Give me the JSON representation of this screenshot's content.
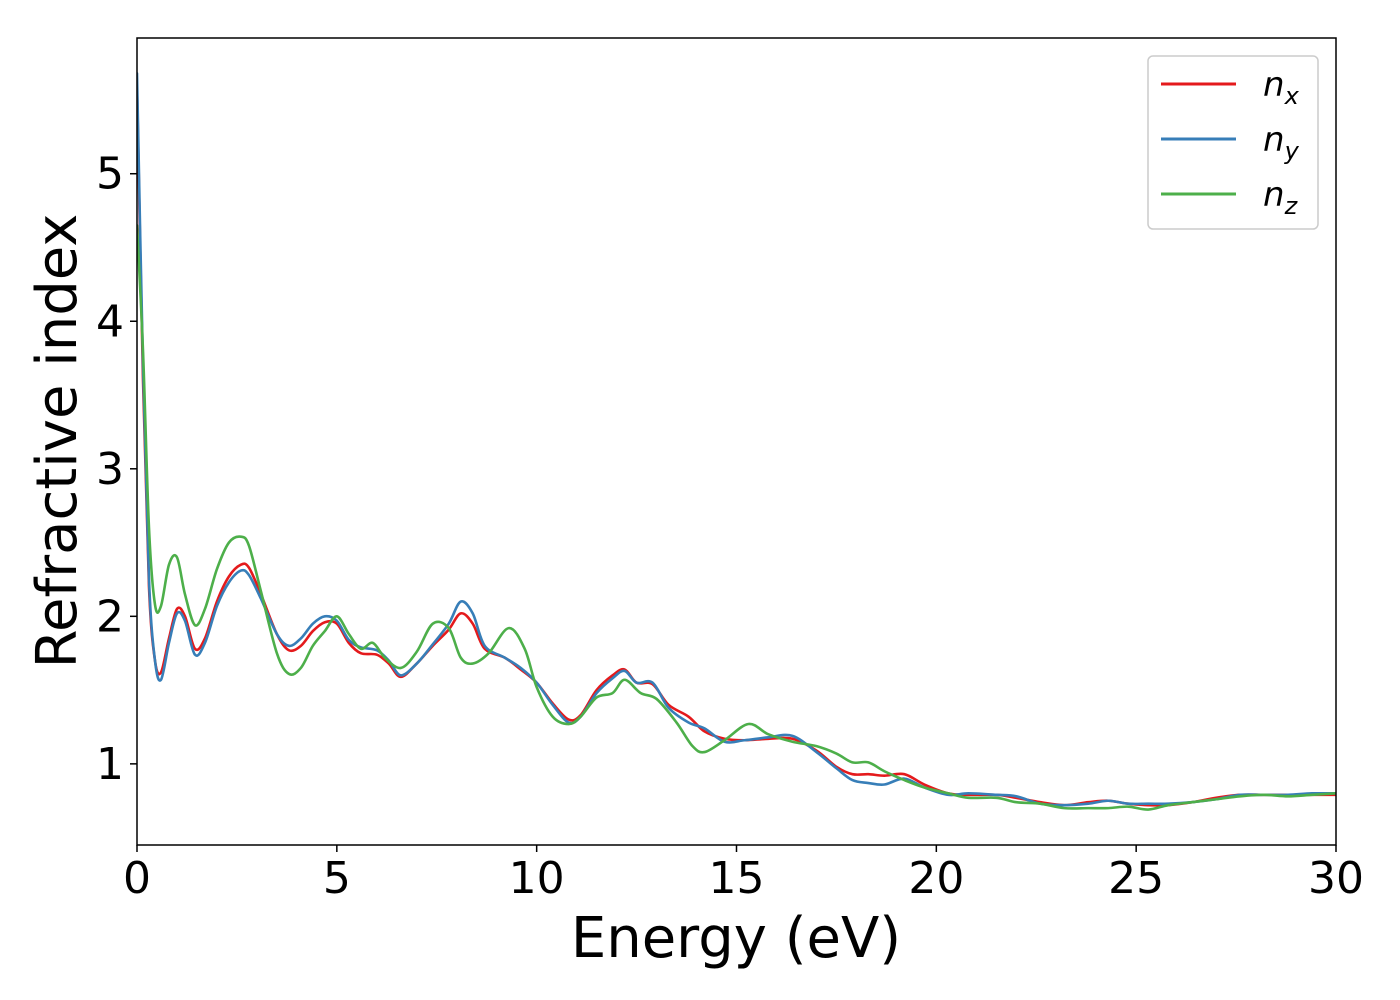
{
  "chart_data": {
    "type": "line",
    "title": "",
    "xlabel": "Energy (eV)",
    "ylabel": "Refractive index",
    "xlim": [
      0,
      30
    ],
    "ylim": [
      0.45,
      5.92
    ],
    "xticks": [
      0,
      5,
      10,
      15,
      20,
      25,
      30
    ],
    "yticks": [
      1,
      2,
      3,
      4,
      5
    ],
    "grid": false,
    "legend_position": "top-right",
    "series": [
      {
        "name": "n",
        "subscript": "x",
        "color": "#e41a1c",
        "points": [
          [
            0.0,
            5.6
          ],
          [
            0.15,
            3.6
          ],
          [
            0.3,
            2.2
          ],
          [
            0.45,
            1.7
          ],
          [
            0.6,
            1.62
          ],
          [
            0.8,
            1.85
          ],
          [
            1.0,
            2.05
          ],
          [
            1.2,
            2.0
          ],
          [
            1.45,
            1.78
          ],
          [
            1.7,
            1.85
          ],
          [
            2.0,
            2.1
          ],
          [
            2.3,
            2.27
          ],
          [
            2.6,
            2.35
          ],
          [
            2.8,
            2.33
          ],
          [
            3.1,
            2.15
          ],
          [
            3.5,
            1.88
          ],
          [
            3.8,
            1.77
          ],
          [
            4.1,
            1.8
          ],
          [
            4.4,
            1.9
          ],
          [
            4.7,
            1.96
          ],
          [
            5.0,
            1.95
          ],
          [
            5.3,
            1.82
          ],
          [
            5.6,
            1.75
          ],
          [
            6.0,
            1.74
          ],
          [
            6.3,
            1.68
          ],
          [
            6.6,
            1.59
          ],
          [
            7.0,
            1.68
          ],
          [
            7.4,
            1.8
          ],
          [
            7.8,
            1.91
          ],
          [
            8.1,
            2.02
          ],
          [
            8.4,
            1.95
          ],
          [
            8.7,
            1.78
          ],
          [
            9.2,
            1.72
          ],
          [
            9.6,
            1.64
          ],
          [
            10.0,
            1.55
          ],
          [
            10.4,
            1.41
          ],
          [
            10.8,
            1.3
          ],
          [
            11.1,
            1.33
          ],
          [
            11.5,
            1.5
          ],
          [
            11.9,
            1.6
          ],
          [
            12.2,
            1.64
          ],
          [
            12.5,
            1.55
          ],
          [
            12.9,
            1.54
          ],
          [
            13.3,
            1.4
          ],
          [
            13.8,
            1.32
          ],
          [
            14.2,
            1.22
          ],
          [
            14.7,
            1.17
          ],
          [
            15.2,
            1.16
          ],
          [
            15.8,
            1.17
          ],
          [
            16.4,
            1.17
          ],
          [
            17.0,
            1.09
          ],
          [
            17.5,
            0.98
          ],
          [
            17.9,
            0.93
          ],
          [
            18.3,
            0.93
          ],
          [
            18.7,
            0.92
          ],
          [
            19.2,
            0.93
          ],
          [
            19.7,
            0.86
          ],
          [
            20.3,
            0.8
          ],
          [
            20.8,
            0.79
          ],
          [
            21.5,
            0.79
          ],
          [
            22.0,
            0.77
          ],
          [
            22.6,
            0.74
          ],
          [
            23.2,
            0.72
          ],
          [
            23.8,
            0.74
          ],
          [
            24.3,
            0.75
          ],
          [
            24.8,
            0.73
          ],
          [
            25.3,
            0.72
          ],
          [
            25.8,
            0.72
          ],
          [
            26.4,
            0.74
          ],
          [
            27.0,
            0.77
          ],
          [
            27.6,
            0.79
          ],
          [
            28.2,
            0.79
          ],
          [
            28.8,
            0.79
          ],
          [
            29.4,
            0.79
          ],
          [
            30.0,
            0.79
          ]
        ]
      },
      {
        "name": "n",
        "subscript": "y",
        "color": "#377eb8",
        "points": [
          [
            0.0,
            5.68
          ],
          [
            0.15,
            3.7
          ],
          [
            0.3,
            2.25
          ],
          [
            0.45,
            1.7
          ],
          [
            0.6,
            1.57
          ],
          [
            0.8,
            1.82
          ],
          [
            1.0,
            2.02
          ],
          [
            1.2,
            1.97
          ],
          [
            1.45,
            1.74
          ],
          [
            1.7,
            1.82
          ],
          [
            2.0,
            2.07
          ],
          [
            2.3,
            2.23
          ],
          [
            2.6,
            2.31
          ],
          [
            2.8,
            2.28
          ],
          [
            3.1,
            2.12
          ],
          [
            3.5,
            1.88
          ],
          [
            3.8,
            1.8
          ],
          [
            4.1,
            1.85
          ],
          [
            4.4,
            1.95
          ],
          [
            4.7,
            2.0
          ],
          [
            5.0,
            1.97
          ],
          [
            5.3,
            1.84
          ],
          [
            5.6,
            1.79
          ],
          [
            6.0,
            1.77
          ],
          [
            6.3,
            1.7
          ],
          [
            6.6,
            1.6
          ],
          [
            7.0,
            1.68
          ],
          [
            7.4,
            1.81
          ],
          [
            7.8,
            1.95
          ],
          [
            8.1,
            2.1
          ],
          [
            8.4,
            2.02
          ],
          [
            8.7,
            1.8
          ],
          [
            9.2,
            1.72
          ],
          [
            9.6,
            1.65
          ],
          [
            10.0,
            1.55
          ],
          [
            10.4,
            1.4
          ],
          [
            10.8,
            1.28
          ],
          [
            11.1,
            1.32
          ],
          [
            11.5,
            1.48
          ],
          [
            11.9,
            1.58
          ],
          [
            12.2,
            1.63
          ],
          [
            12.5,
            1.55
          ],
          [
            12.9,
            1.55
          ],
          [
            13.3,
            1.38
          ],
          [
            13.8,
            1.28
          ],
          [
            14.2,
            1.24
          ],
          [
            14.7,
            1.15
          ],
          [
            15.2,
            1.16
          ],
          [
            15.8,
            1.18
          ],
          [
            16.4,
            1.19
          ],
          [
            17.0,
            1.08
          ],
          [
            17.5,
            0.97
          ],
          [
            17.9,
            0.89
          ],
          [
            18.3,
            0.87
          ],
          [
            18.7,
            0.86
          ],
          [
            19.2,
            0.9
          ],
          [
            19.7,
            0.84
          ],
          [
            20.3,
            0.79
          ],
          [
            20.8,
            0.8
          ],
          [
            21.5,
            0.79
          ],
          [
            22.0,
            0.78
          ],
          [
            22.6,
            0.73
          ],
          [
            23.2,
            0.72
          ],
          [
            23.8,
            0.73
          ],
          [
            24.3,
            0.75
          ],
          [
            24.8,
            0.73
          ],
          [
            25.3,
            0.73
          ],
          [
            25.8,
            0.73
          ],
          [
            26.4,
            0.74
          ],
          [
            27.0,
            0.76
          ],
          [
            27.6,
            0.79
          ],
          [
            28.2,
            0.79
          ],
          [
            28.8,
            0.79
          ],
          [
            29.4,
            0.8
          ],
          [
            30.0,
            0.8
          ]
        ]
      },
      {
        "name": "n",
        "subscript": "z",
        "color": "#4daf4a",
        "points": [
          [
            0.0,
            4.65
          ],
          [
            0.15,
            3.8
          ],
          [
            0.3,
            2.6
          ],
          [
            0.45,
            2.08
          ],
          [
            0.6,
            2.07
          ],
          [
            0.8,
            2.35
          ],
          [
            1.0,
            2.4
          ],
          [
            1.2,
            2.15
          ],
          [
            1.45,
            1.94
          ],
          [
            1.7,
            2.05
          ],
          [
            2.0,
            2.32
          ],
          [
            2.3,
            2.5
          ],
          [
            2.6,
            2.54
          ],
          [
            2.8,
            2.48
          ],
          [
            3.1,
            2.17
          ],
          [
            3.5,
            1.75
          ],
          [
            3.8,
            1.61
          ],
          [
            4.1,
            1.65
          ],
          [
            4.4,
            1.8
          ],
          [
            4.7,
            1.9
          ],
          [
            5.0,
            2.0
          ],
          [
            5.3,
            1.88
          ],
          [
            5.6,
            1.78
          ],
          [
            5.9,
            1.82
          ],
          [
            6.2,
            1.72
          ],
          [
            6.6,
            1.65
          ],
          [
            7.0,
            1.76
          ],
          [
            7.4,
            1.95
          ],
          [
            7.8,
            1.92
          ],
          [
            8.1,
            1.72
          ],
          [
            8.4,
            1.68
          ],
          [
            8.8,
            1.75
          ],
          [
            9.3,
            1.92
          ],
          [
            9.7,
            1.78
          ],
          [
            10.0,
            1.52
          ],
          [
            10.4,
            1.32
          ],
          [
            10.8,
            1.27
          ],
          [
            11.1,
            1.32
          ],
          [
            11.5,
            1.45
          ],
          [
            11.9,
            1.48
          ],
          [
            12.2,
            1.57
          ],
          [
            12.6,
            1.48
          ],
          [
            13.0,
            1.44
          ],
          [
            13.5,
            1.28
          ],
          [
            13.9,
            1.12
          ],
          [
            14.2,
            1.08
          ],
          [
            14.7,
            1.16
          ],
          [
            15.3,
            1.27
          ],
          [
            15.8,
            1.2
          ],
          [
            16.4,
            1.15
          ],
          [
            17.0,
            1.12
          ],
          [
            17.5,
            1.07
          ],
          [
            17.9,
            1.01
          ],
          [
            18.3,
            1.01
          ],
          [
            18.7,
            0.95
          ],
          [
            19.2,
            0.89
          ],
          [
            19.7,
            0.84
          ],
          [
            20.3,
            0.8
          ],
          [
            20.8,
            0.77
          ],
          [
            21.5,
            0.77
          ],
          [
            22.0,
            0.74
          ],
          [
            22.6,
            0.73
          ],
          [
            23.2,
            0.7
          ],
          [
            23.8,
            0.7
          ],
          [
            24.3,
            0.7
          ],
          [
            24.8,
            0.71
          ],
          [
            25.3,
            0.69
          ],
          [
            25.8,
            0.72
          ],
          [
            26.4,
            0.74
          ],
          [
            27.0,
            0.76
          ],
          [
            27.6,
            0.78
          ],
          [
            28.2,
            0.79
          ],
          [
            28.8,
            0.78
          ],
          [
            29.4,
            0.79
          ],
          [
            30.0,
            0.8
          ]
        ]
      }
    ]
  }
}
